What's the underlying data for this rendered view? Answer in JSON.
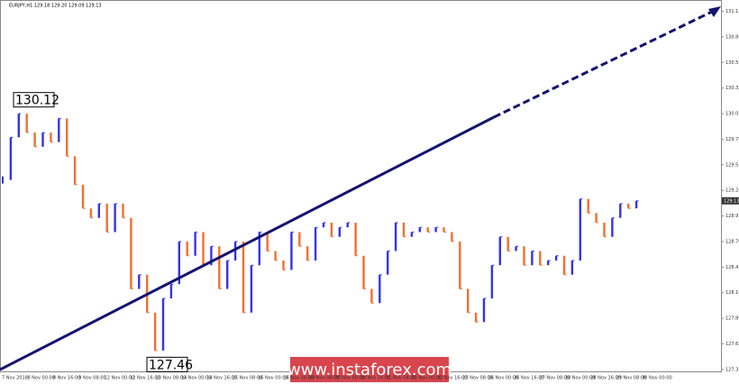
{
  "chart_data": {
    "type": "price-bars",
    "header": "EURJPY,H1 129.18 129.20 129.09 129.13",
    "up_color": "#3434e8",
    "down_color": "#f07030",
    "ylim": [
      127.33,
      131.23
    ],
    "yticks": [
      131.13,
      130.86,
      130.59,
      130.32,
      130.05,
      129.78,
      129.51,
      129.24,
      128.97,
      {
        "value": 128.7,
        "label": "128.70"
      },
      128.43,
      128.16,
      127.89,
      127.62,
      127.35
    ],
    "xlabels": [
      "7 Nov 2018",
      "8 Nov 00:00",
      "8 Nov 16:00",
      "9 Nov 08:00",
      "12 Nov 00:00",
      "12 Nov 16:00",
      "13 Nov 08:00",
      "14 Nov 00:00",
      "14 Nov 16:00",
      "15 Nov 08:00",
      "16 Nov 00:00",
      "16 Nov 16:00",
      "19 Nov 08:00",
      "20 Nov 00:00",
      "20 Nov 16:00",
      "21 Nov 08:00",
      "22 Nov 00:00",
      "22 Nov 16:00",
      "23 Nov 08:00",
      "26 Nov 00:00",
      "26 Nov 16:00",
      "27 Nov 08:00",
      "28 Nov 00:00",
      "28 Nov 16:00",
      "29 Nov 08:00",
      "30 Nov 00:00"
    ],
    "values": [
      129.35,
      129.8,
      130.05,
      129.85,
      129.7,
      129.85,
      129.75,
      130.0,
      129.6,
      129.3,
      129.05,
      128.95,
      129.1,
      128.8,
      129.1,
      128.95,
      128.2,
      128.35,
      127.95,
      127.55,
      128.1,
      128.25,
      128.7,
      128.55,
      128.8,
      128.45,
      128.65,
      128.2,
      128.5,
      128.7,
      127.95,
      128.45,
      128.8,
      128.6,
      128.5,
      128.4,
      128.8,
      128.65,
      128.5,
      128.85,
      128.9,
      128.75,
      128.85,
      128.9,
      128.55,
      128.2,
      128.05,
      128.35,
      128.6,
      128.9,
      128.75,
      128.8,
      128.85,
      128.8,
      128.85,
      128.8,
      128.7,
      128.2,
      127.95,
      127.85,
      128.1,
      128.45,
      128.75,
      128.6,
      128.65,
      128.45,
      128.6,
      128.45,
      128.5,
      128.55,
      128.35,
      128.5,
      129.15,
      129.0,
      128.9,
      128.75,
      128.95,
      129.1,
      129.05,
      129.13
    ],
    "last_price": 129.13,
    "annotations": [
      {
        "value": 130.12
      },
      {
        "value": 127.46
      }
    ],
    "watermark": "www.instaforex.com"
  }
}
